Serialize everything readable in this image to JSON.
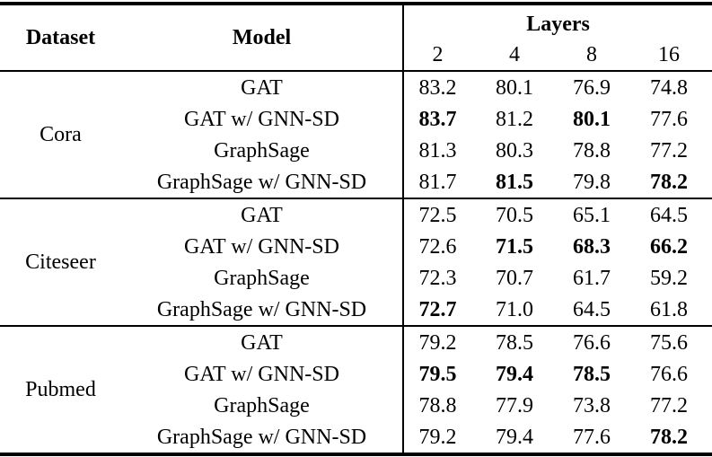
{
  "table": {
    "headers": {
      "dataset": "Dataset",
      "model": "Model",
      "layers": "Layers",
      "layer_cols": [
        "2",
        "4",
        "8",
        "16"
      ]
    },
    "groups": [
      {
        "dataset": "Cora",
        "rows": [
          {
            "model": "GAT",
            "values": [
              "83.2",
              "80.1",
              "76.9",
              "74.8"
            ],
            "bold": [
              false,
              false,
              false,
              false
            ]
          },
          {
            "model": "GAT w/ GNN-SD",
            "values": [
              "83.7",
              "81.2",
              "80.1",
              "77.6"
            ],
            "bold": [
              true,
              false,
              true,
              false
            ]
          },
          {
            "model": "GraphSage",
            "values": [
              "81.3",
              "80.3",
              "78.8",
              "77.2"
            ],
            "bold": [
              false,
              false,
              false,
              false
            ]
          },
          {
            "model": "GraphSage w/ GNN-SD",
            "values": [
              "81.7",
              "81.5",
              "79.8",
              "78.2"
            ],
            "bold": [
              false,
              true,
              false,
              true
            ]
          }
        ]
      },
      {
        "dataset": "Citeseer",
        "rows": [
          {
            "model": "GAT",
            "values": [
              "72.5",
              "70.5",
              "65.1",
              "64.5"
            ],
            "bold": [
              false,
              false,
              false,
              false
            ]
          },
          {
            "model": "GAT w/ GNN-SD",
            "values": [
              "72.6",
              "71.5",
              "68.3",
              "66.2"
            ],
            "bold": [
              false,
              true,
              true,
              true
            ]
          },
          {
            "model": "GraphSage",
            "values": [
              "72.3",
              "70.7",
              "61.7",
              "59.2"
            ],
            "bold": [
              false,
              false,
              false,
              false
            ]
          },
          {
            "model": "GraphSage w/ GNN-SD",
            "values": [
              "72.7",
              "71.0",
              "64.5",
              "61.8"
            ],
            "bold": [
              true,
              false,
              false,
              false
            ]
          }
        ]
      },
      {
        "dataset": "Pubmed",
        "rows": [
          {
            "model": "GAT",
            "values": [
              "79.2",
              "78.5",
              "76.6",
              "75.6"
            ],
            "bold": [
              false,
              false,
              false,
              false
            ]
          },
          {
            "model": "GAT w/ GNN-SD",
            "values": [
              "79.5",
              "79.4",
              "78.5",
              "76.6"
            ],
            "bold": [
              true,
              true,
              true,
              false
            ]
          },
          {
            "model": "GraphSage",
            "values": [
              "78.8",
              "77.9",
              "73.8",
              "77.2"
            ],
            "bold": [
              false,
              false,
              false,
              false
            ]
          },
          {
            "model": "GraphSage w/ GNN-SD",
            "values": [
              "79.2",
              "79.4",
              "77.6",
              "78.2"
            ],
            "bold": [
              false,
              false,
              false,
              true
            ]
          }
        ]
      }
    ],
    "colors": {
      "text": "#000000",
      "rule": "#000000",
      "background": "#ffffff"
    }
  }
}
